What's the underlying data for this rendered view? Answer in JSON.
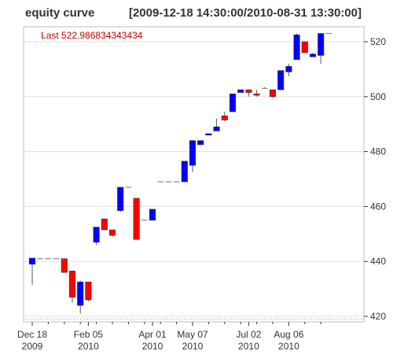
{
  "header": {
    "title": "equity curve",
    "date_range": "[2009-12-18 14:30:00/2010-08-31 13:30:00]"
  },
  "last_label": "Last 522.986834343434",
  "colors": {
    "background": "#ffffff",
    "plot_background": "#ffffff",
    "grid": "#e0e0e0",
    "up": "#0000ff",
    "down": "#ff0000",
    "wick": "#555555",
    "last_line": "#999999"
  },
  "chart_data": {
    "type": "candlestick",
    "title": "equity curve",
    "subtitle": "[2009-12-18 14:30:00/2010-08-31 13:30:00]",
    "y_axis": {
      "position": "right",
      "ylim": [
        418,
        527
      ],
      "ticks": [
        420,
        440,
        460,
        480,
        500,
        520
      ]
    },
    "x_axis": {
      "ticks": [
        {
          "index": 0,
          "label": "Dec 18\n2009"
        },
        {
          "index": 7,
          "label": "Feb 05\n2010"
        },
        {
          "index": 15,
          "label": "Apr 01\n2010"
        },
        {
          "index": 20,
          "label": "May 07\n2010"
        },
        {
          "index": 27,
          "label": "Jul 02\n2010"
        },
        {
          "index": 32,
          "label": "Aug 06\n2010"
        }
      ]
    },
    "grid": true,
    "last_value": 522.986834343434,
    "candles": [
      {
        "open": 439.0,
        "high": 441.2,
        "low": 431.5,
        "close": 441.2
      },
      {
        "open": 441.0,
        "high": 441.0,
        "low": 441.0,
        "close": 441.0
      },
      {
        "open": 441.0,
        "high": 441.0,
        "low": 441.0,
        "close": 441.0
      },
      {
        "open": 441.0,
        "high": 441.0,
        "low": 441.0,
        "close": 441.0
      },
      {
        "open": 441.0,
        "high": 441.0,
        "low": 436.0,
        "close": 436.0
      },
      {
        "open": 436.5,
        "high": 436.5,
        "low": 425.0,
        "close": 427.0
      },
      {
        "open": 424.0,
        "high": 433.0,
        "low": 421.0,
        "close": 432.5
      },
      {
        "open": 432.5,
        "high": 432.5,
        "low": 425.5,
        "close": 426.0
      },
      {
        "open": 447.0,
        "high": 452.5,
        "low": 446.0,
        "close": 452.5
      },
      {
        "open": 455.5,
        "high": 455.5,
        "low": 451.5,
        "close": 451.5
      },
      {
        "open": 451.5,
        "high": 451.5,
        "low": 449.0,
        "close": 449.5
      },
      {
        "open": 458.5,
        "high": 467.0,
        "low": 458.0,
        "close": 467.0
      },
      {
        "open": 467.0,
        "high": 467.0,
        "low": 467.0,
        "close": 467.0
      },
      {
        "open": 463.0,
        "high": 463.0,
        "low": 448.0,
        "close": 448.0
      },
      {
        "open": 455.0,
        "high": 455.0,
        "low": 455.0,
        "close": 455.0
      },
      {
        "open": 455.0,
        "high": 459.0,
        "low": 455.0,
        "close": 459.0
      },
      {
        "open": 469.0,
        "high": 469.0,
        "low": 469.0,
        "close": 469.0
      },
      {
        "open": 469.0,
        "high": 469.0,
        "low": 469.0,
        "close": 469.0
      },
      {
        "open": 469.0,
        "high": 469.0,
        "low": 469.0,
        "close": 469.0
      },
      {
        "open": 469.0,
        "high": 476.5,
        "low": 469.0,
        "close": 476.5
      },
      {
        "open": 475.0,
        "high": 484.0,
        "low": 472.5,
        "close": 484.0
      },
      {
        "open": 482.5,
        "high": 484.0,
        "low": 482.5,
        "close": 484.0
      },
      {
        "open": 486.0,
        "high": 486.5,
        "low": 486.0,
        "close": 486.5
      },
      {
        "open": 487.5,
        "high": 492.0,
        "low": 487.5,
        "close": 489.0
      },
      {
        "open": 493.0,
        "high": 494.5,
        "low": 491.0,
        "close": 491.5
      },
      {
        "open": 494.5,
        "high": 501.0,
        "low": 494.5,
        "close": 501.0
      },
      {
        "open": 501.5,
        "high": 502.5,
        "low": 501.5,
        "close": 502.5
      },
      {
        "open": 502.5,
        "high": 502.5,
        "low": 500.0,
        "close": 501.5
      },
      {
        "open": 501.0,
        "high": 502.5,
        "low": 500.0,
        "close": 500.5
      },
      {
        "open": 503.0,
        "high": 503.5,
        "low": 503.0,
        "close": 503.0
      },
      {
        "open": 502.5,
        "high": 502.5,
        "low": 499.5,
        "close": 500.0
      },
      {
        "open": 502.5,
        "high": 509.5,
        "low": 502.5,
        "close": 509.5
      },
      {
        "open": 509.0,
        "high": 512.0,
        "low": 507.5,
        "close": 511.0
      },
      {
        "open": 513.5,
        "high": 523.0,
        "low": 513.5,
        "close": 522.5
      },
      {
        "open": 520.0,
        "high": 520.0,
        "low": 516.0,
        "close": 516.0
      },
      {
        "open": 514.5,
        "high": 516.0,
        "low": 514.5,
        "close": 515.5
      },
      {
        "open": 515.0,
        "high": 523.0,
        "low": 512.0,
        "close": 523.0
      },
      {
        "open": 523.0,
        "high": 523.0,
        "low": 523.0,
        "close": 523.0
      }
    ]
  }
}
